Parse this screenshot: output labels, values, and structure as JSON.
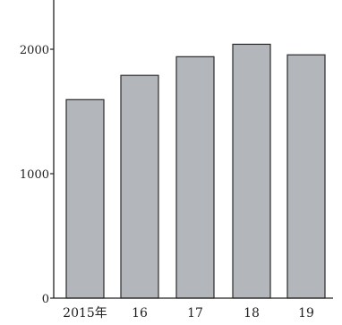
{
  "chart_data": {
    "type": "bar",
    "categories": [
      "2015年",
      "16",
      "17",
      "18",
      "19"
    ],
    "values": [
      1595,
      1790,
      1940,
      2040,
      1955
    ],
    "title": "",
    "xlabel": "",
    "ylabel": "",
    "ylim": [
      0,
      2000
    ],
    "yticks": [
      "0",
      "1000",
      "2000"
    ],
    "grid": false,
    "legend": "none",
    "colors": {
      "bar_fill": "#b3b6bb",
      "bar_stroke": "#2a2a2a",
      "axis": "#222222",
      "text": "#222222"
    }
  }
}
